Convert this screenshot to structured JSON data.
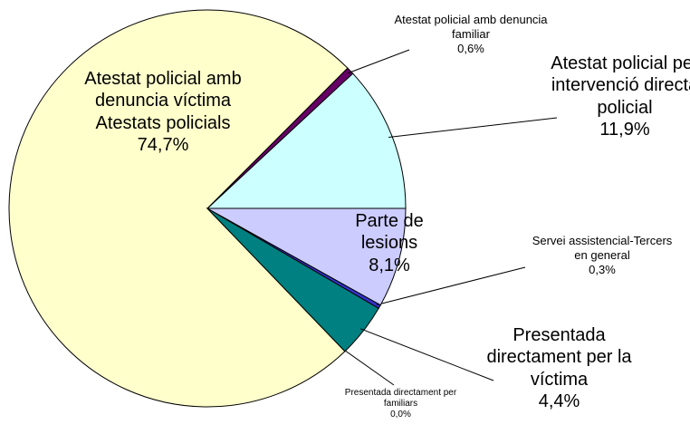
{
  "chart_data": {
    "type": "pie",
    "categories": [
      "Atestat policial per intervenció directa policial",
      "Atestat policial amb denuncia familiar",
      "Atestat policial amb denuncia víctima Atestats policials",
      "Presentada directament per familiars",
      "Presentada directament per la víctima",
      "Servei assistencial-Tercers en general",
      "Parte de lesions"
    ],
    "values": [
      11.9,
      0.6,
      74.7,
      0.0,
      4.4,
      0.3,
      8.1
    ],
    "value_labels": [
      "11,9%",
      "0,6%",
      "74,7%",
      "0,0%",
      "4,4%",
      "0,3%",
      "8,1%"
    ],
    "colors": [
      "#ccffff",
      "#660066",
      "#ffffcc",
      "#993366",
      "#008080",
      "#3333cc",
      "#ccccff"
    ]
  }
}
